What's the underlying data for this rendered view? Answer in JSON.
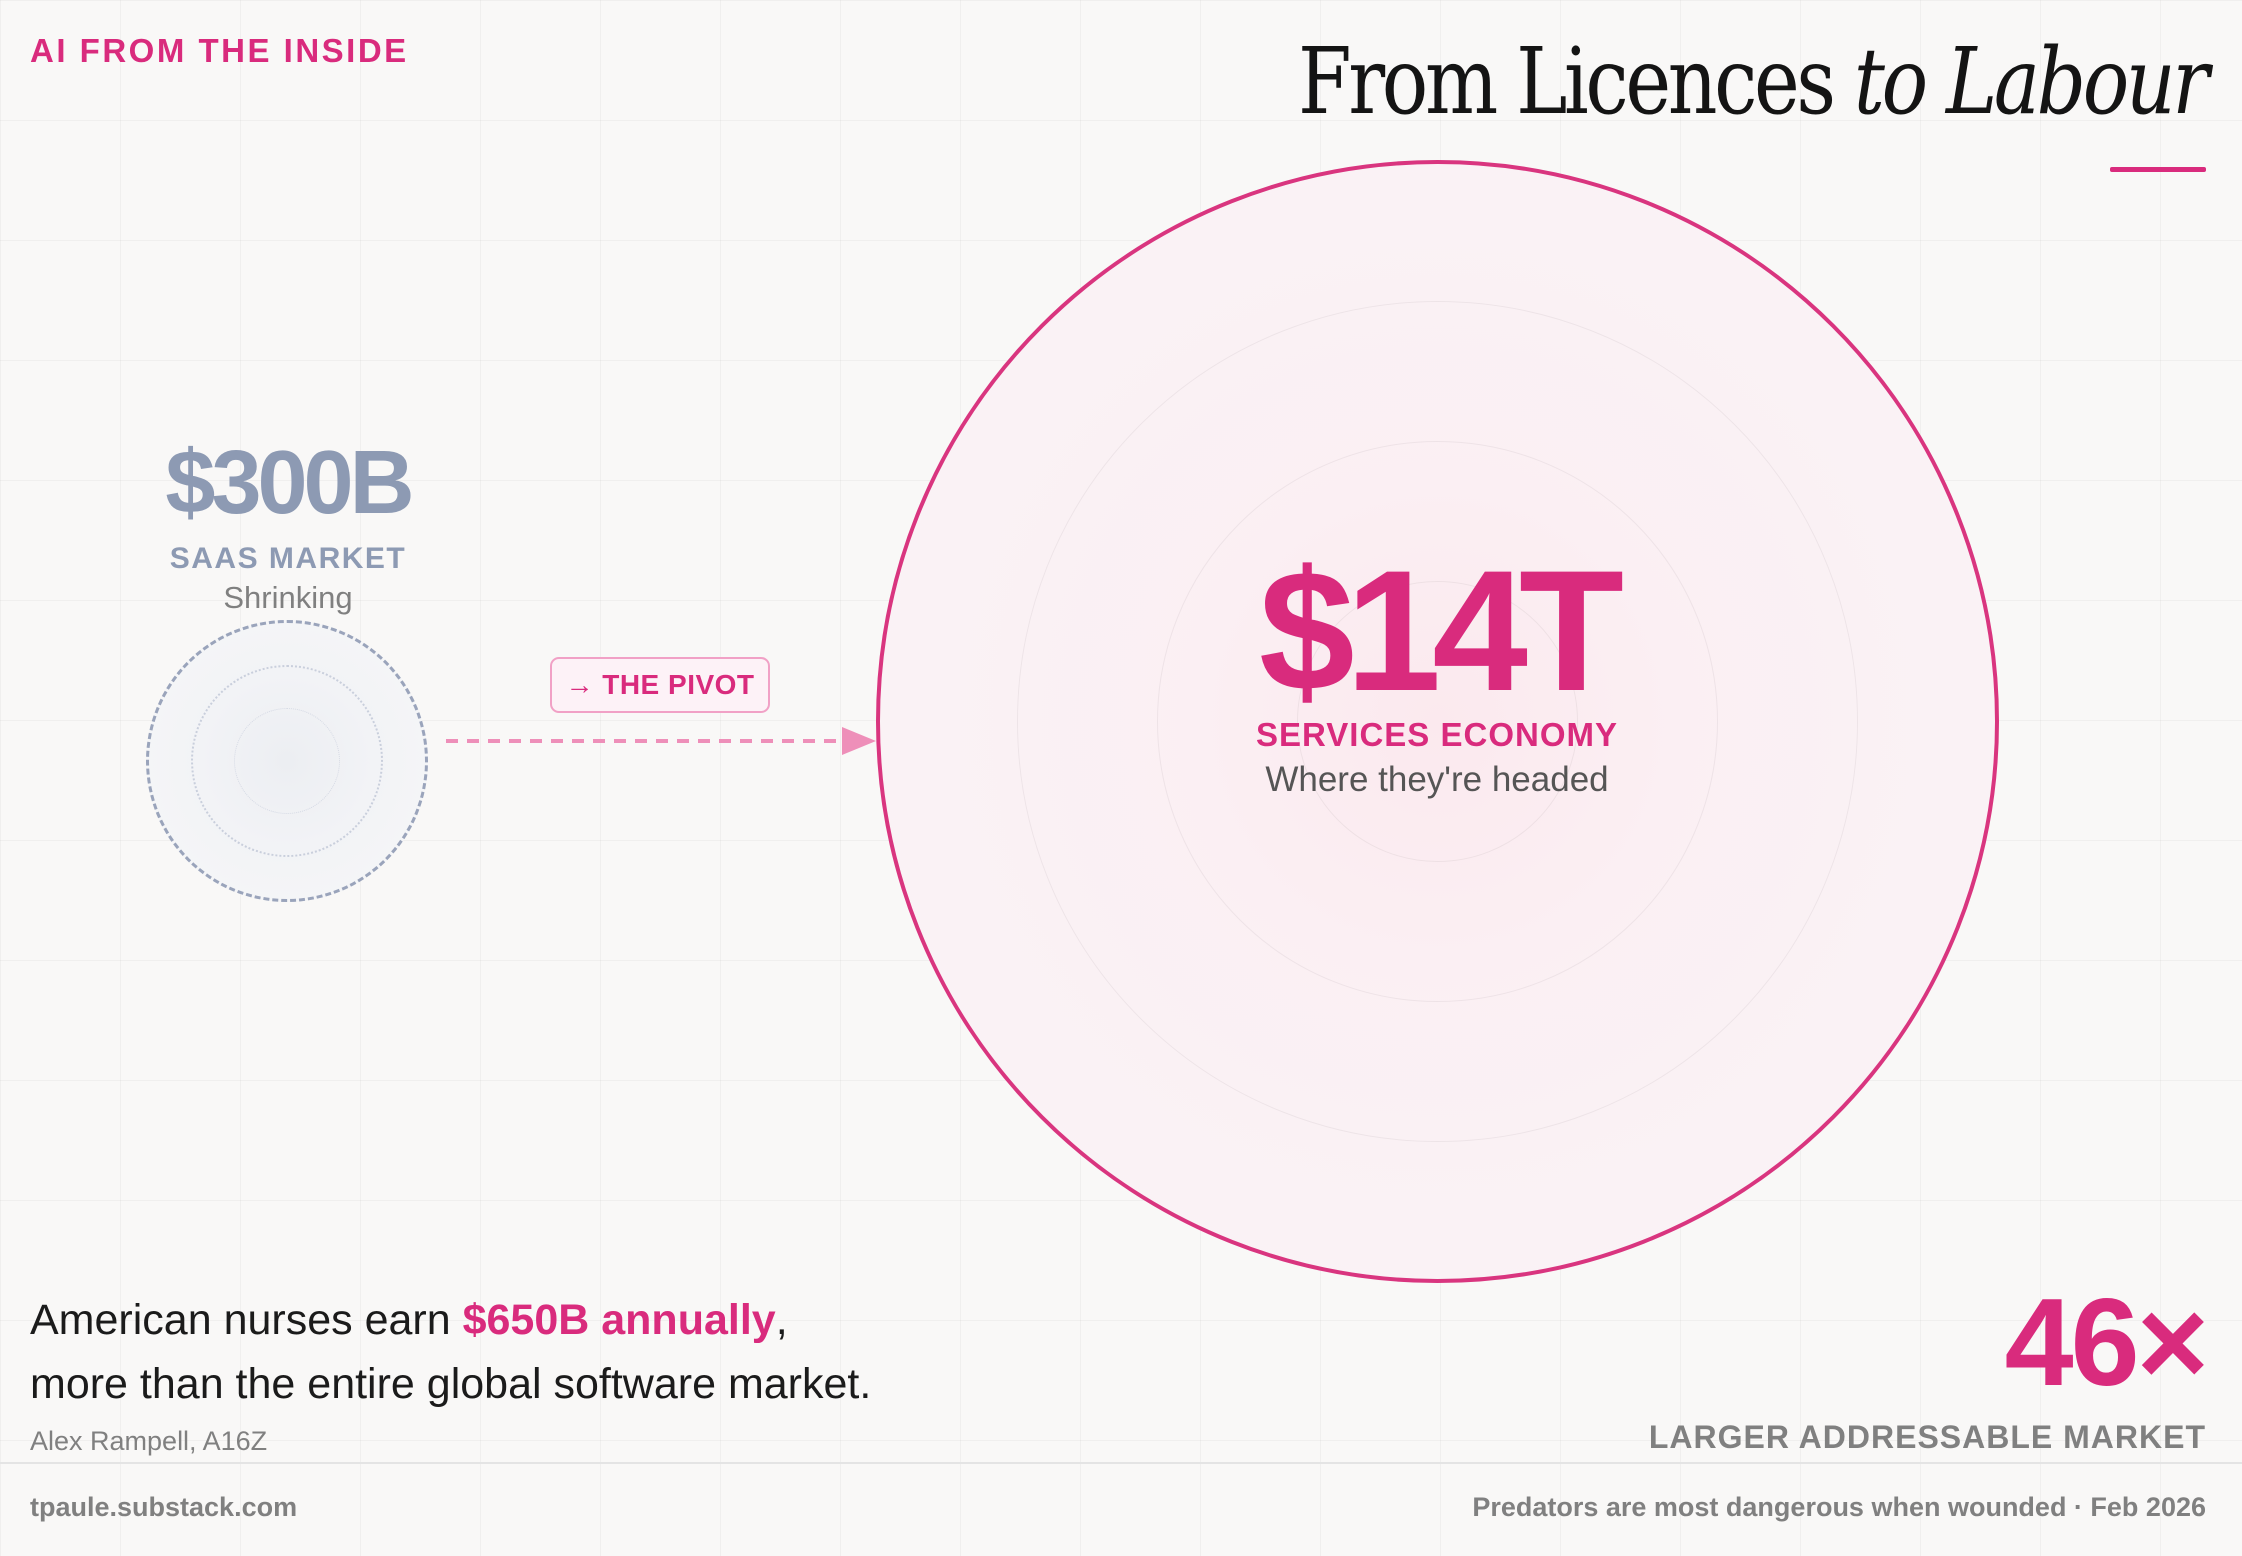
{
  "header": {
    "brand": "AI FROM THE INSIDE",
    "title_plain": "From Licences ",
    "title_italic": "to Labour"
  },
  "saas": {
    "value": "$300B",
    "label": "SAAS MARKET",
    "sub": "Shrinking"
  },
  "pivot": {
    "arrow": "→",
    "label": "THE PIVOT"
  },
  "services": {
    "value": "$14T",
    "label": "SERVICES ECONOMY",
    "sub": "Where they're headed"
  },
  "quote": {
    "part1": "American nurses earn ",
    "highlight": "$650B annually",
    "part2": ",",
    "line2": "more than the entire global software market.",
    "attribution": "Alex Rampell, A16Z"
  },
  "stat": {
    "value": "46×",
    "label": "LARGER ADDRESSABLE MARKET"
  },
  "footer": {
    "left": "tpaule.substack.com",
    "right": "Predators are most dangerous when wounded · Feb 2026"
  },
  "colors": {
    "accent": "#d92b7d",
    "muted_blue": "#8d9ab3",
    "gray": "#808080",
    "background": "#f9f8f7"
  }
}
